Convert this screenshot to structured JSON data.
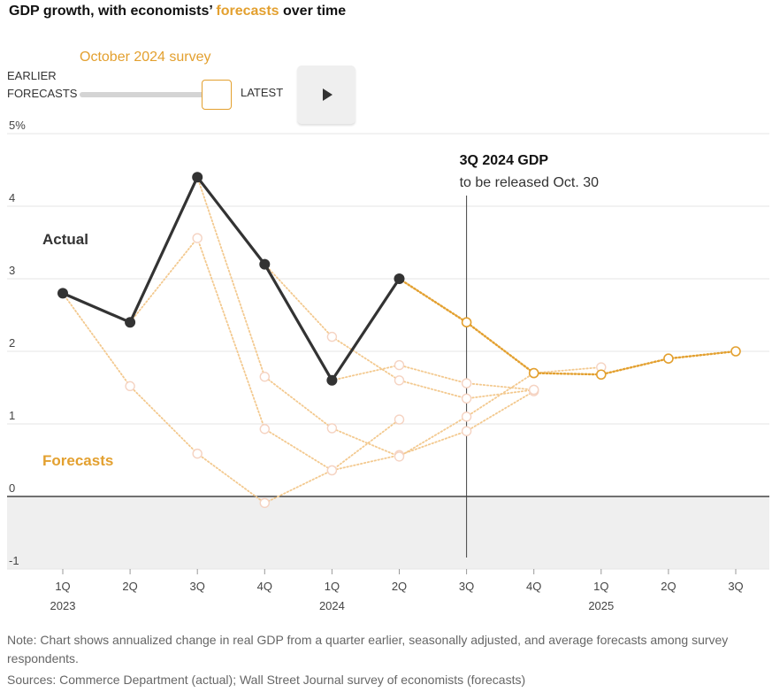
{
  "header": {
    "title_pre": "GDP growth, with economists’ ",
    "title_highlight": "forecasts",
    "title_post": " over time"
  },
  "controls": {
    "survey_label": "October 2024 survey",
    "earlier_line1": "EARLIER",
    "earlier_line2": "FORECASTS",
    "latest_label": "LATEST",
    "play_icon": "play-icon"
  },
  "colors": {
    "actual": "#333333",
    "forecast": "#e3a02f",
    "forecast_faded": "#f3c98f",
    "negative_band": "#efefef",
    "grid": "#e6e6e6"
  },
  "chart_data": {
    "type": "line",
    "x": [
      "1Q",
      "2Q",
      "3Q",
      "4Q",
      "1Q",
      "2Q",
      "3Q",
      "4Q",
      "1Q",
      "2Q",
      "3Q"
    ],
    "year_labels": [
      {
        "index": 0,
        "label": "2023"
      },
      {
        "index": 4,
        "label": "2024"
      },
      {
        "index": 8,
        "label": "2025"
      }
    ],
    "yticks": [
      "5%",
      "4",
      "3",
      "2",
      "1",
      "0",
      "-1"
    ],
    "ylim": [
      -1,
      5
    ],
    "grid": true,
    "series": [
      {
        "name": "Actual",
        "role": "actual",
        "values": [
          2.8,
          2.4,
          4.4,
          3.2,
          1.6,
          3.0,
          null,
          null,
          null,
          null,
          null
        ]
      },
      {
        "name": "Forecasts",
        "role": "latest",
        "values": [
          null,
          null,
          null,
          null,
          null,
          3.0,
          2.4,
          1.7,
          1.68,
          1.9,
          2.0
        ]
      },
      {
        "role": "earlier",
        "values": [
          2.8,
          1.52,
          0.59,
          -0.09,
          0.36,
          1.06,
          null,
          null,
          null,
          null,
          null
        ]
      },
      {
        "role": "earlier",
        "values": [
          2.8,
          2.4,
          3.56,
          0.93,
          0.36,
          0.57,
          0.9,
          1.45,
          null,
          null,
          null
        ]
      },
      {
        "role": "earlier",
        "values": [
          null,
          2.4,
          4.4,
          1.65,
          0.94,
          0.55,
          1.1,
          1.7,
          1.78,
          null,
          null
        ]
      },
      {
        "role": "earlier",
        "values": [
          null,
          null,
          null,
          3.2,
          2.2,
          1.6,
          1.35,
          1.47,
          null,
          null,
          null
        ]
      },
      {
        "role": "earlier",
        "values": [
          null,
          null,
          null,
          null,
          1.6,
          1.81,
          1.56,
          1.47,
          null,
          null,
          null
        ]
      }
    ],
    "annotations": [
      {
        "label": "Actual"
      },
      {
        "label": "Forecasts"
      }
    ],
    "release_marker": {
      "index": 6,
      "title": "3Q 2024 GDP",
      "subtitle": "to be released Oct. 30"
    }
  },
  "footer": {
    "note": "Note: Chart shows annualized change in real GDP from a quarter earlier, seasonally adjusted, and average forecasts among survey respondents.",
    "sources": "Sources: Commerce Department (actual); Wall Street Journal survey of economists (forecasts)"
  }
}
